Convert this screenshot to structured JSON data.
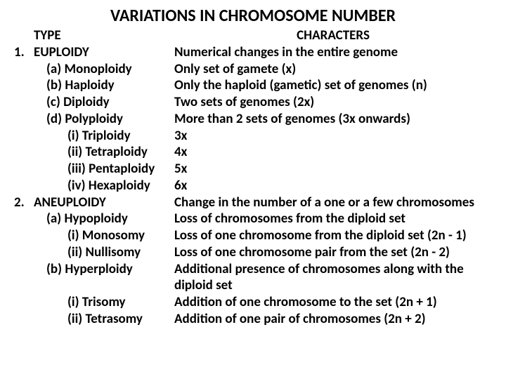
{
  "title": "VARIATIONS IN CHROMOSOME NUMBER",
  "header": {
    "type": "TYPE",
    "characters": "CHARACTERS"
  },
  "rows": [
    {
      "num": "1.",
      "type": "EUPLOIDY",
      "indent": "ind1",
      "char": "Numerical changes in the entire genome"
    },
    {
      "num": "",
      "type": "(a)  Monoploidy",
      "indent": "ind2",
      "char": "Only set of gamete (x)"
    },
    {
      "num": "",
      "type": "(b)  Haploidy",
      "indent": "ind2",
      "char": "Only the haploid (gametic) set of genomes (n)"
    },
    {
      "num": "",
      "type": "(c)   Diploidy",
      "indent": "ind2",
      "char": "Two sets of genomes (2x)"
    },
    {
      "num": "",
      "type": "(d)  Polyploidy",
      "indent": "ind2",
      "char": "More than 2 sets of genomes (3x onwards)"
    },
    {
      "num": "",
      "type": "(i) Triploidy",
      "indent": "ind3",
      "char": "3x"
    },
    {
      "num": "",
      "type": "(ii) Tetraploidy",
      "indent": "ind3",
      "char": "4x"
    },
    {
      "num": "",
      "type": "(iii) Pentaploidy",
      "indent": "ind3",
      "char": "5x"
    },
    {
      "num": "",
      "type": "(iv) Hexaploidy",
      "indent": "ind3",
      "char": "6x"
    },
    {
      "num": "2.",
      "type": "ANEUPLOIDY",
      "indent": "ind1",
      "char": "Change in the number of a one or a few chromosomes"
    },
    {
      "num": "",
      "type": "(a)   Hypoploidy",
      "indent": "ind2",
      "char": "Loss of chromosomes from the diploid set"
    },
    {
      "num": "",
      "type": "(i) Monosomy",
      "indent": "ind3",
      "char": "Loss of one chromosome from the diploid set (2n - 1)"
    },
    {
      "num": "",
      "type": "(ii) Nullisomy",
      "indent": "ind3",
      "char": "Loss of one chromosome pair from the set (2n - 2)"
    },
    {
      "num": "",
      "type": "(b)   Hyperploidy",
      "indent": "ind2",
      "char": "Additional presence of chromosomes along with the diploid set"
    },
    {
      "num": "",
      "type": "(i) Trisomy",
      "indent": "ind3",
      "char": "Addition of one chromosome to the set (2n + 1)"
    },
    {
      "num": "",
      "type": "(ii) Tetrasomy",
      "indent": "ind3",
      "char": "Addition of one pair of chromosomes (2n + 2)"
    }
  ]
}
